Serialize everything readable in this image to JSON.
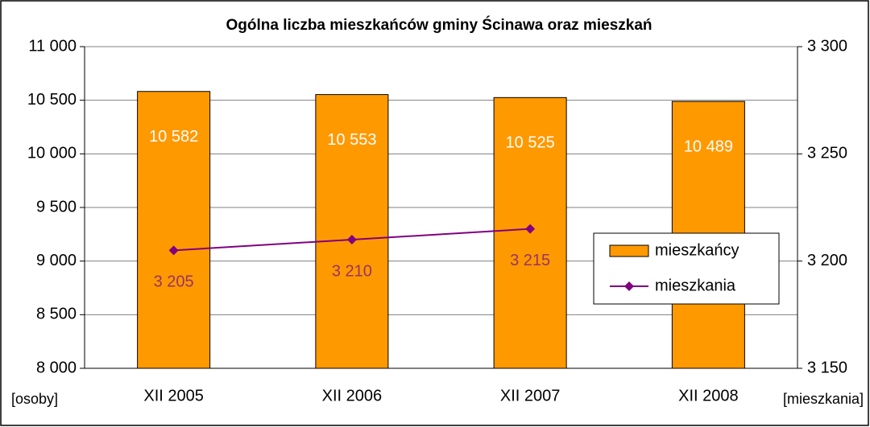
{
  "chart_data": {
    "type": "bar",
    "title": "Ogólna liczba mieszkańców gminy Ścinawa oraz mieszkań",
    "y_label": "[osoby]",
    "y2_label": "[mieszkania]",
    "categories": [
      "XII 2005",
      "XII 2006",
      "XII 2007",
      "XII 2008"
    ],
    "series": [
      {
        "name": "mieszkańcy",
        "type": "bar",
        "color": "#ff9900",
        "values": [
          10582,
          10553,
          10525,
          10489
        ],
        "value_labels": [
          "10 582",
          "10 553",
          "10 525",
          "10 489"
        ]
      },
      {
        "name": "mieszkania",
        "type": "line",
        "axis": "y2",
        "color": "#800080",
        "label_color": "#993366",
        "values": [
          3205,
          3210,
          3215,
          null
        ],
        "value_labels": [
          "3 205",
          "3 210",
          "3 215",
          null
        ]
      }
    ],
    "ylim": [
      8000,
      11000
    ],
    "yticks": [
      {
        "value": 8000,
        "label": "8 000"
      },
      {
        "value": 8500,
        "label": "8 500"
      },
      {
        "value": 9000,
        "label": "9 000"
      },
      {
        "value": 9500,
        "label": "9 500"
      },
      {
        "value": 10000,
        "label": "10 000"
      },
      {
        "value": 10500,
        "label": "10 500"
      },
      {
        "value": 11000,
        "label": "11 000"
      }
    ],
    "y2lim": [
      3150,
      3300
    ],
    "y2ticks": [
      {
        "value": 3150,
        "label": "3 150"
      },
      {
        "value": 3200,
        "label": "3 200"
      },
      {
        "value": 3250,
        "label": "3 250"
      },
      {
        "value": 3300,
        "label": "3 300"
      }
    ],
    "grid": true,
    "legend": "right"
  }
}
